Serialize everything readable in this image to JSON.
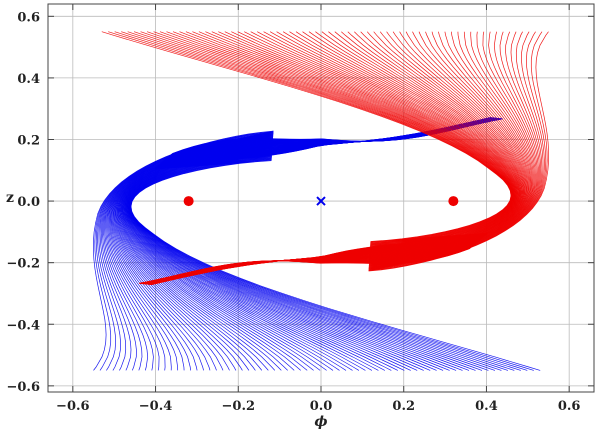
{
  "chart_data": {
    "type": "line",
    "title": "",
    "xlabel": "ϕ",
    "ylabel": "z",
    "xlim": [
      -0.66,
      0.66
    ],
    "ylim": [
      -0.62,
      0.64
    ],
    "x_ticks": [
      -0.6,
      -0.4,
      -0.2,
      0.0,
      0.2,
      0.4,
      0.6
    ],
    "y_ticks": [
      -0.6,
      -0.4,
      -0.2,
      0.0,
      0.2,
      0.4,
      0.6
    ],
    "x_tick_labels": [
      "−0.6",
      "−0.4",
      "−0.2",
      "0.0",
      "0.2",
      "0.4",
      "0.6"
    ],
    "y_tick_labels": [
      "−0.6",
      "−0.4",
      "−0.2",
      "0.0",
      "0.2",
      "0.4",
      "0.6"
    ],
    "grid": true,
    "colors": {
      "blue": "#0000ee",
      "red": "#ee0000",
      "grid": "#bbbbbb"
    },
    "series": [
      {
        "color": "blue",
        "kind": "trajectory-family",
        "start_points": {
          "x_range": [
            -0.53,
            0.55
          ],
          "y": -0.55
        },
        "path": [
          [
            -0.53,
            -0.55
          ],
          [
            -0.48,
            0.0
          ],
          [
            -0.35,
            0.2
          ],
          [
            -0.1,
            0.07
          ],
          [
            0.2,
            0.2
          ],
          [
            0.42,
            0.2
          ]
        ]
      },
      {
        "color": "red",
        "kind": "trajectory-family",
        "start_points": {
          "x_range": [
            -0.55,
            0.53
          ],
          "y": 0.55
        },
        "path": [
          [
            0.53,
            0.55
          ],
          [
            0.48,
            0.0
          ],
          [
            0.35,
            -0.2
          ],
          [
            0.1,
            -0.07
          ],
          [
            -0.2,
            -0.2
          ],
          [
            -0.42,
            -0.2
          ]
        ]
      }
    ],
    "markers": [
      {
        "symbol": "dot",
        "color": "red",
        "x": -0.32,
        "y": 0.0
      },
      {
        "symbol": "dot",
        "color": "red",
        "x": 0.32,
        "y": 0.0
      },
      {
        "symbol": "cross",
        "color": "blue",
        "x": 0.0,
        "y": 0.0
      }
    ]
  }
}
